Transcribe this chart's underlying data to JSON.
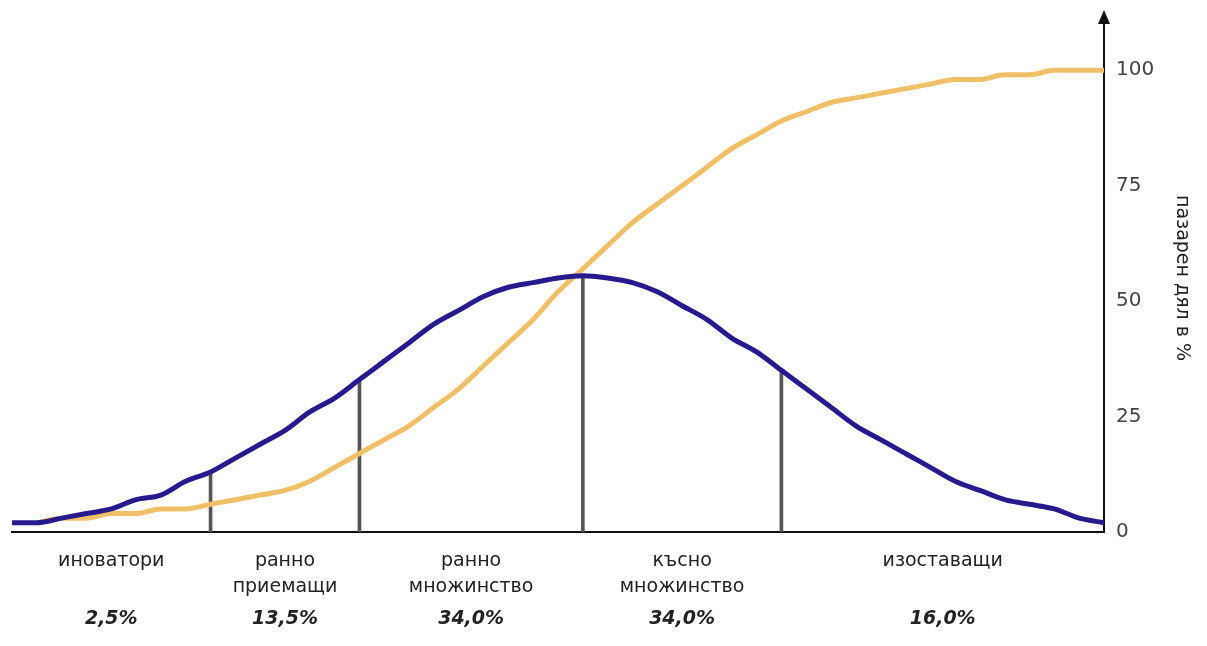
{
  "chart_data": {
    "type": "line",
    "categories": [
      null,
      null,
      null,
      null,
      null,
      null,
      null,
      null,
      null,
      null,
      null,
      null,
      null,
      null,
      null,
      null,
      null,
      null,
      null,
      null,
      null,
      null,
      null,
      null,
      null,
      null,
      null,
      null,
      null,
      null,
      null,
      null,
      null,
      null,
      null,
      null,
      null,
      null,
      null,
      null,
      null,
      null,
      null,
      null,
      null
    ],
    "series": [
      {
        "color": "#261a8c",
        "values": [
          2,
          2,
          3,
          4,
          5,
          7,
          8,
          11,
          13,
          16,
          19,
          22,
          26,
          29,
          33,
          37,
          41,
          45,
          48,
          51,
          53,
          54,
          55,
          55.5,
          55,
          54,
          52,
          49,
          46,
          42,
          39,
          35,
          31,
          27,
          23,
          20,
          17,
          14,
          11,
          9,
          7,
          6,
          5,
          3,
          2
        ]
      },
      {
        "color": "#f0c068",
        "values": [
          null,
          2,
          3,
          3,
          4,
          4,
          5,
          5,
          6,
          7,
          8,
          9,
          11,
          14,
          17,
          20,
          23,
          27,
          31,
          36,
          41,
          46,
          52,
          57,
          62,
          67,
          71,
          75,
          79,
          83,
          86,
          89,
          91,
          93,
          94,
          95,
          96,
          97,
          98,
          98,
          99,
          99,
          100,
          100,
          100
        ]
      },
      {
        "type": "bar",
        "color": "#555555",
        "values": [
          null,
          null,
          null,
          null,
          null,
          null,
          null,
          null,
          13,
          null,
          null,
          null,
          null,
          null,
          33,
          null,
          null,
          null,
          null,
          null,
          null,
          null,
          null,
          55.5,
          null,
          null,
          null,
          null,
          null,
          null,
          null,
          35,
          null,
          null,
          null,
          null,
          null,
          null,
          null,
          null,
          null,
          null,
          null,
          null,
          null
        ]
      }
    ],
    "ylabel": "пазарен дял в %",
    "ylim": [
      0,
      110
    ],
    "yticks": [
      0,
      25,
      50,
      75,
      100
    ],
    "annotations": [
      "иноватори",
      "ранно приемащи",
      "ранно множинство",
      "късно множинство",
      "изоставащи",
      "2,5%",
      "13,5%",
      "34,0%",
      "34,0%",
      "16,0%"
    ],
    "grid": false,
    "legend": false,
    "tick_labels": "y",
    "marker": "none"
  }
}
